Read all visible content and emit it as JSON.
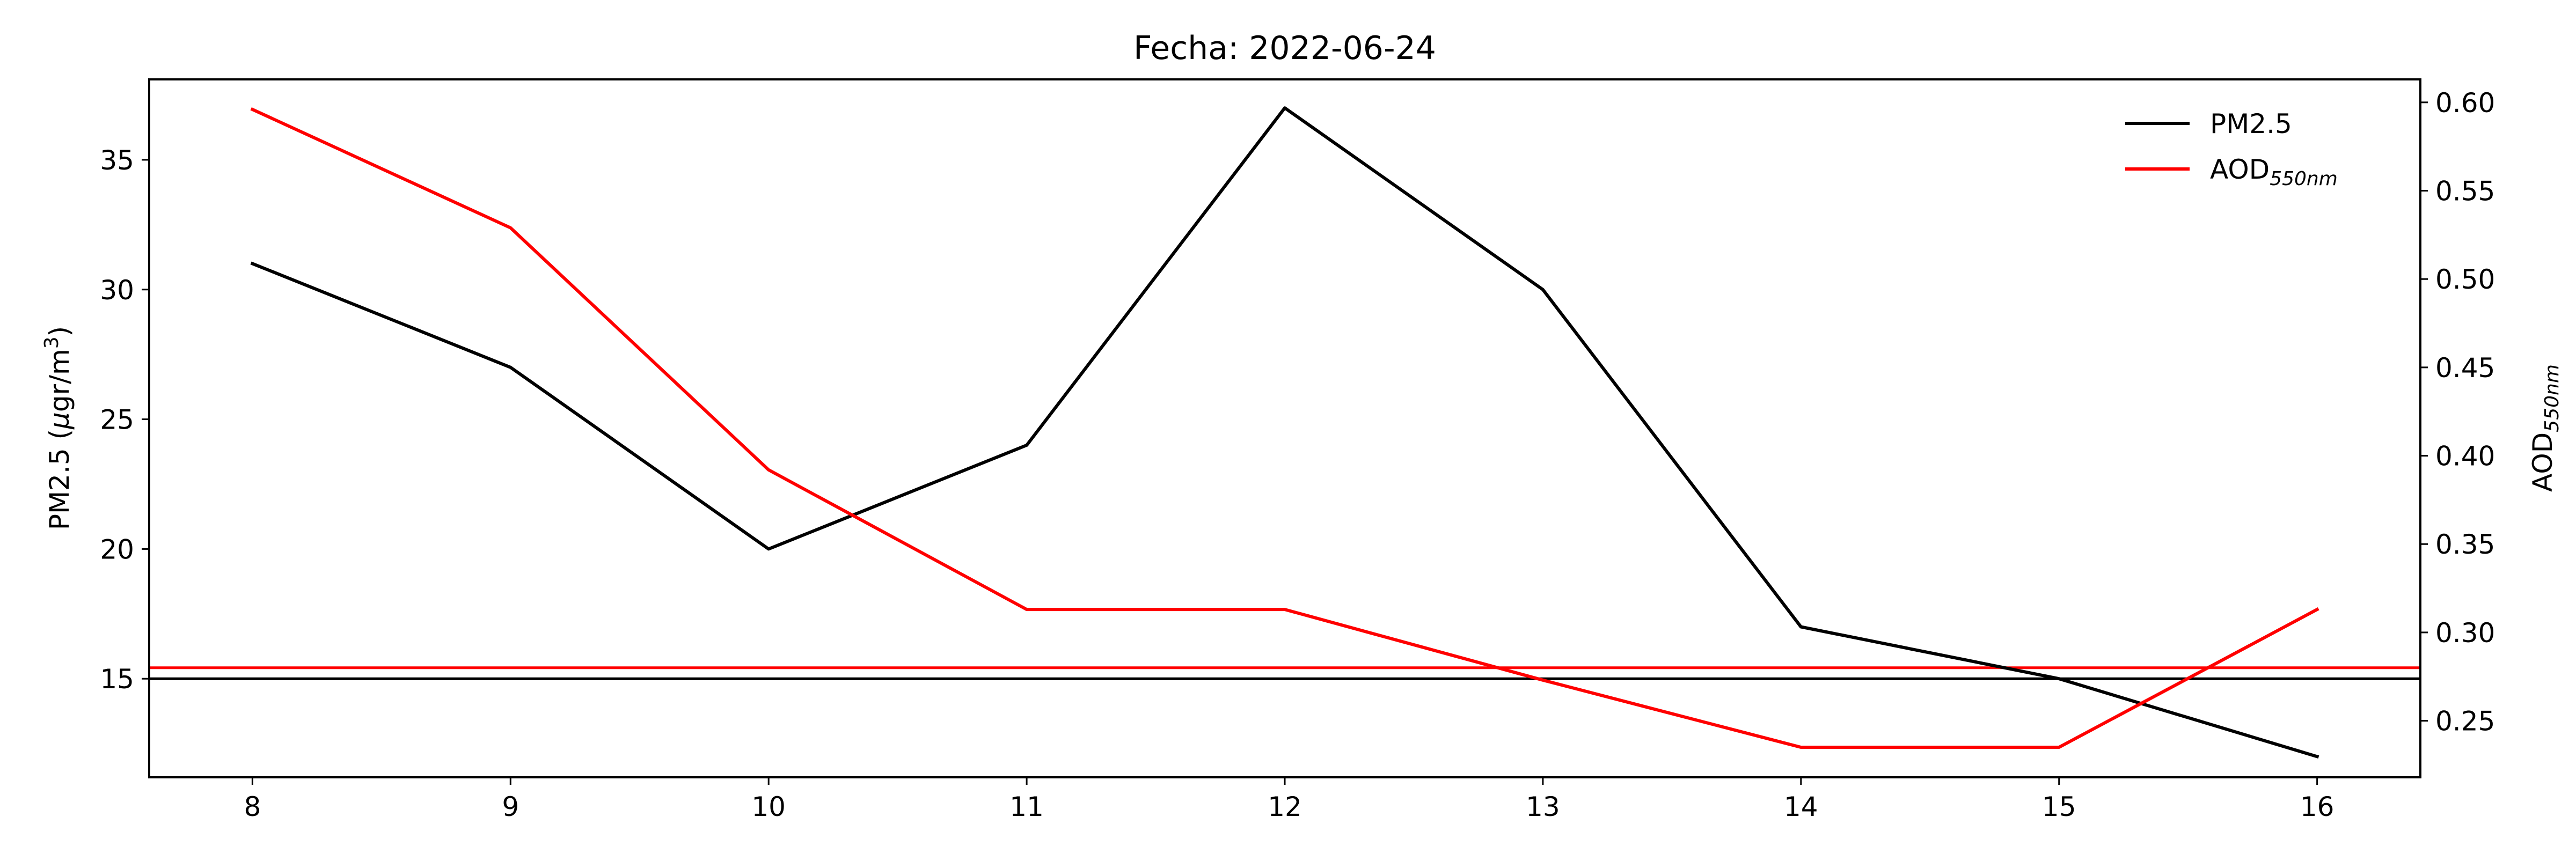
{
  "chart_data": {
    "type": "line",
    "title": "Fecha: 2022-06-24",
    "x": [
      8,
      9,
      10,
      11,
      12,
      13,
      14,
      15,
      16
    ],
    "xticks": [
      "8",
      "9",
      "10",
      "11",
      "12",
      "13",
      "14",
      "15",
      "16"
    ],
    "xlim": [
      7.6,
      16.4
    ],
    "y_left": {
      "label_main": "PM2.5 (",
      "label_mu": "μ",
      "label_mid": "gr/m",
      "label_sup": "3",
      "label_end": ")",
      "ylim": [
        11.2,
        38.1
      ],
      "ticks": [
        15,
        20,
        25,
        30,
        35
      ]
    },
    "y_right": {
      "label_main": "AOD",
      "label_sub": "550nm",
      "ylim": [
        0.218,
        0.613
      ],
      "ticks": [
        "0.25",
        "0.30",
        "0.35",
        "0.40",
        "0.45",
        "0.50",
        "0.55",
        "0.60"
      ]
    },
    "series": [
      {
        "name": "PM2.5",
        "axis": "left",
        "color": "#000000",
        "values": [
          31,
          27,
          20,
          24,
          37,
          30,
          17,
          15,
          12
        ]
      },
      {
        "name_main": "AOD",
        "name_sub": "550nm",
        "axis": "right",
        "color": "#ff0000",
        "values": [
          0.596,
          0.529,
          0.392,
          0.313,
          0.313,
          0.273,
          0.235,
          0.235,
          0.313
        ]
      }
    ],
    "hlines": [
      {
        "axis": "left",
        "value": 15,
        "color": "#000000"
      },
      {
        "axis": "right",
        "value": 0.28,
        "color": "#ff0000"
      }
    ],
    "legend_position": "top-right",
    "grid": false
  }
}
